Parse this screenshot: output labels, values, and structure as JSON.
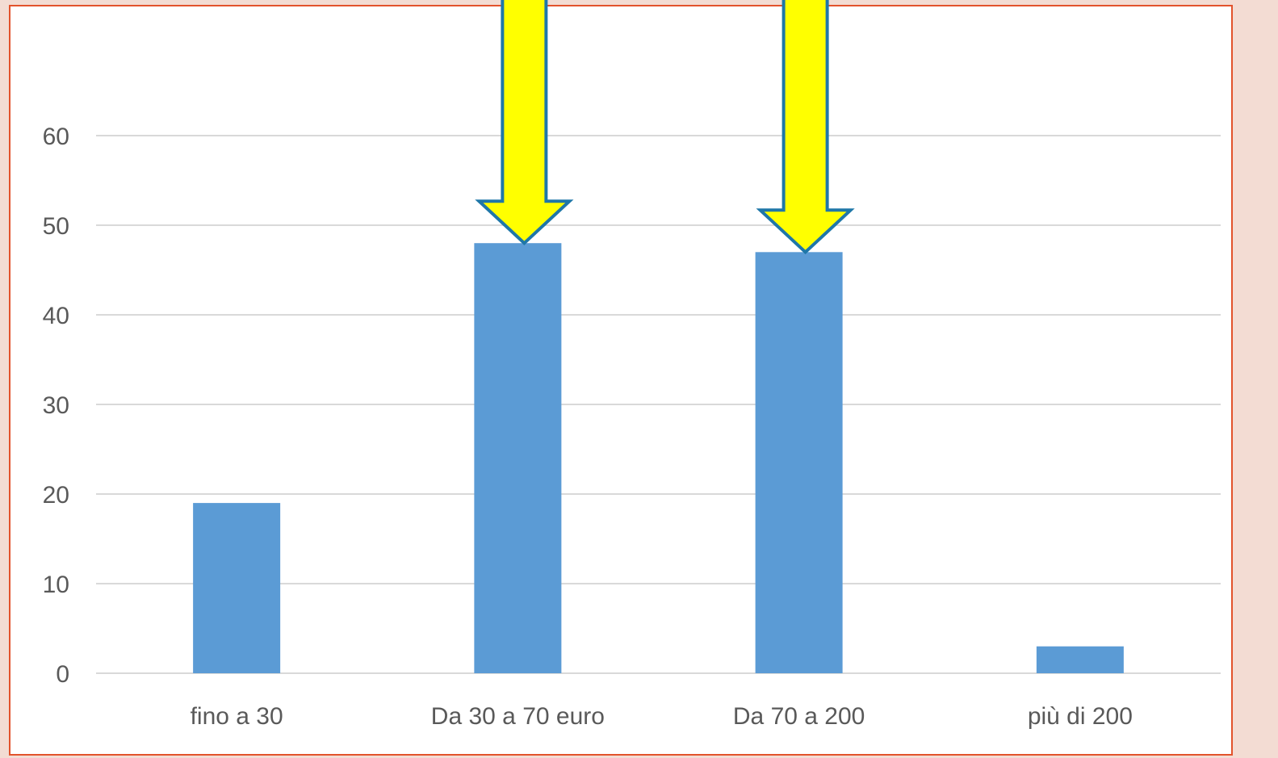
{
  "chart_data": {
    "type": "bar",
    "categories": [
      "fino a 30",
      "Da 30 a 70 euro",
      "Da 70 a 200",
      "più di 200"
    ],
    "values": [
      19,
      48,
      47,
      3
    ],
    "yticks": [
      "0",
      "10",
      "20",
      "30",
      "40",
      "50",
      "60"
    ],
    "ylim": [
      0,
      60
    ],
    "grid": true,
    "legend": "none",
    "title": "",
    "xlabel": "",
    "ylabel": "",
    "annotations": [
      {
        "type": "arrow",
        "target_category": "Da 30 a 70 euro"
      },
      {
        "type": "arrow",
        "target_category": "Da 70 a 200"
      }
    ]
  },
  "colors": {
    "bar": "#5b9bd5",
    "grid": "#d9d9d9",
    "axis_text": "#595959",
    "arrow_fill": "#ffff00",
    "arrow_stroke": "#1f77a8",
    "frame_border": "#e2532c",
    "outer_background": "#f3dcd3"
  }
}
